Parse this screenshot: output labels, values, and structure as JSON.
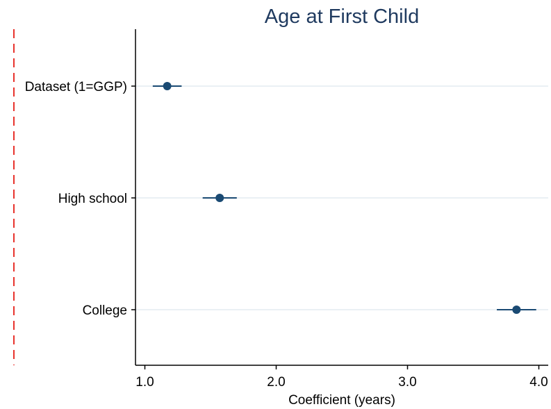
{
  "chart_data": {
    "type": "scatter",
    "title": "Age at First Child",
    "xlabel": "Coefficient (years)",
    "ylabel": "",
    "xlim": [
      0.93,
      4.07
    ],
    "xticks": [
      1.0,
      2.0,
      3.0,
      4.0
    ],
    "xtick_labels": [
      "1.0",
      "2.0",
      "3.0",
      "4.0"
    ],
    "categories": [
      "Dataset (1=GGP)",
      "High school",
      "College"
    ],
    "series": [
      {
        "values": [
          1.17,
          1.57,
          3.83
        ],
        "ci_low": [
          1.06,
          1.44,
          3.68
        ],
        "ci_high": [
          1.28,
          1.7,
          3.98
        ]
      }
    ],
    "reference_line": {
      "x": 0,
      "style": "dashed"
    },
    "grid": true,
    "legend": "none"
  },
  "colors": {
    "marker": "#1a4a73",
    "title": "#1f3a5f",
    "gridline": "#e3ecf0",
    "reference_line": "#e8322c",
    "axis": "#000000"
  }
}
